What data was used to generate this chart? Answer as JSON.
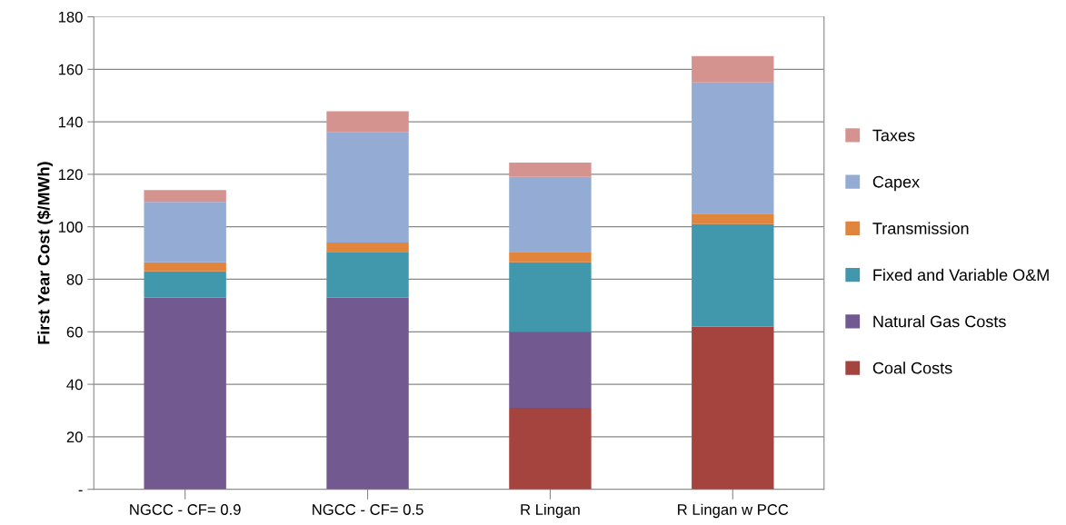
{
  "chart_data": {
    "type": "bar",
    "stacked": true,
    "ylabel": "First Year Cost ($/MWh)",
    "categories": [
      "NGCC - CF= 0.9",
      "NGCC - CF= 0.5",
      "R Lingan",
      "R Lingan w PCC"
    ],
    "series": [
      {
        "name": "Coal Costs",
        "color": "#a5433f",
        "values": [
          0,
          0,
          31,
          62
        ]
      },
      {
        "name": "Natural Gas Costs",
        "color": "#72598f",
        "values": [
          73,
          73,
          29,
          0
        ]
      },
      {
        "name": "Fixed and Variable O&M",
        "color": "#4198ac",
        "values": [
          10,
          17.5,
          26.5,
          39
        ]
      },
      {
        "name": "Transmission",
        "color": "#e0853b",
        "values": [
          3.5,
          3.5,
          4,
          4
        ]
      },
      {
        "name": "Capex",
        "color": "#94acd3",
        "values": [
          23,
          42,
          28.5,
          50
        ]
      },
      {
        "name": "Taxes",
        "color": "#d59390",
        "values": [
          4.5,
          8,
          5.5,
          10
        ]
      }
    ],
    "ylim": [
      0,
      180
    ],
    "yticks": [
      {
        "value": 0,
        "label": "-"
      },
      20,
      40,
      60,
      80,
      100,
      120,
      140,
      160,
      180
    ],
    "grid": "y",
    "legend": "right"
  }
}
